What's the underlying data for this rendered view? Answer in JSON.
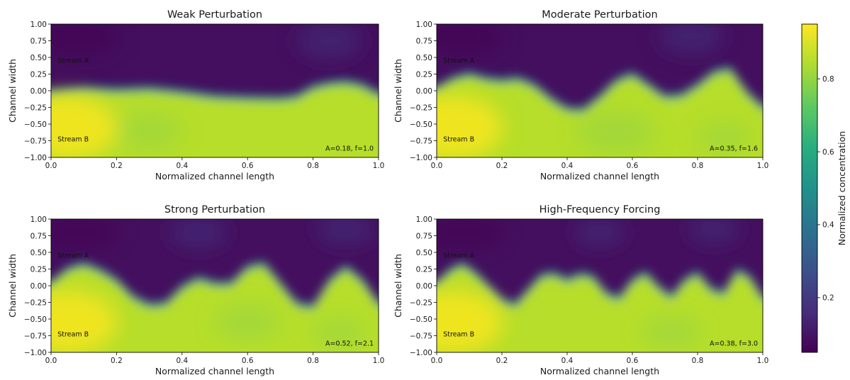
{
  "chart_data": [
    {
      "type": "heatmap",
      "title": "Weak Perturbation",
      "xlabel": "Normalized channel length",
      "ylabel": "Channel width",
      "xlim": [
        0.0,
        1.0
      ],
      "ylim": [
        -1.0,
        1.0
      ],
      "xticks": [
        "0.0",
        "0.2",
        "0.4",
        "0.6",
        "0.8",
        "1.0"
      ],
      "yticks": [
        "1.00",
        "0.75",
        "0.50",
        "0.25",
        "0.00",
        "−0.25",
        "−0.50",
        "−0.75",
        "−1.00"
      ],
      "stream_labels": [
        "Stream A",
        "Stream B"
      ],
      "annotation": "A=0.18, f=1.0",
      "interface": {
        "x": [
          0.0,
          0.1,
          0.2,
          0.3,
          0.4,
          0.5,
          0.6,
          0.7,
          0.75,
          0.8,
          0.85,
          0.9,
          0.95,
          1.0
        ],
        "y": [
          -0.05,
          0.0,
          -0.02,
          0.0,
          -0.05,
          -0.12,
          -0.14,
          -0.15,
          -0.12,
          0.02,
          0.08,
          0.1,
          0.05,
          -0.08
        ]
      }
    },
    {
      "type": "heatmap",
      "title": "Moderate Perturbation",
      "xlabel": "Normalized channel length",
      "ylabel": "Channel width",
      "xlim": [
        0.0,
        1.0
      ],
      "ylim": [
        -1.0,
        1.0
      ],
      "xticks": [
        "0.0",
        "0.2",
        "0.4",
        "0.6",
        "0.8",
        "1.0"
      ],
      "yticks": [
        "1.00",
        "0.75",
        "0.50",
        "0.25",
        "0.00",
        "−0.25",
        "−0.50",
        "−0.75",
        "−1.00"
      ],
      "stream_labels": [
        "Stream A",
        "Stream B"
      ],
      "annotation": "A=0.35, f=1.6",
      "interface": {
        "x": [
          0.0,
          0.05,
          0.1,
          0.15,
          0.2,
          0.25,
          0.3,
          0.35,
          0.4,
          0.45,
          0.5,
          0.55,
          0.6,
          0.65,
          0.7,
          0.75,
          0.8,
          0.85,
          0.9,
          0.95,
          1.0
        ],
        "y": [
          0.0,
          0.15,
          0.22,
          0.15,
          0.12,
          0.15,
          0.05,
          -0.15,
          -0.3,
          -0.32,
          -0.12,
          0.12,
          0.22,
          0.05,
          -0.12,
          -0.1,
          0.05,
          0.25,
          0.3,
          -0.05,
          -0.28
        ]
      }
    },
    {
      "type": "heatmap",
      "title": "Strong Perturbation",
      "xlabel": "Normalized channel length",
      "ylabel": "Channel width",
      "xlim": [
        0.0,
        1.0
      ],
      "ylim": [
        -1.0,
        1.0
      ],
      "xticks": [
        "0.0",
        "0.2",
        "0.4",
        "0.6",
        "0.8",
        "1.0"
      ],
      "yticks": [
        "1.00",
        "0.75",
        "0.50",
        "0.25",
        "0.00",
        "−0.25",
        "−0.50",
        "−0.75",
        "−1.00"
      ],
      "stream_labels": [
        "Stream A",
        "Stream B"
      ],
      "annotation": "A=0.52, f=2.1",
      "interface": {
        "x": [
          0.0,
          0.05,
          0.1,
          0.15,
          0.2,
          0.25,
          0.3,
          0.35,
          0.4,
          0.45,
          0.5,
          0.55,
          0.6,
          0.65,
          0.7,
          0.75,
          0.8,
          0.85,
          0.9,
          0.95,
          1.0
        ],
        "y": [
          0.0,
          0.22,
          0.3,
          0.2,
          0.05,
          -0.2,
          -0.32,
          -0.3,
          -0.05,
          0.08,
          0.0,
          0.0,
          0.25,
          0.3,
          0.0,
          -0.3,
          -0.35,
          0.05,
          0.25,
          0.05,
          -0.3
        ]
      }
    },
    {
      "type": "heatmap",
      "title": "High-Frequency Forcing",
      "xlabel": "Normalized channel length",
      "ylabel": "Channel width",
      "xlim": [
        0.0,
        1.0
      ],
      "ylim": [
        -1.0,
        1.0
      ],
      "xticks": [
        "0.0",
        "0.2",
        "0.4",
        "0.6",
        "0.8",
        "1.0"
      ],
      "yticks": [
        "1.00",
        "0.75",
        "0.50",
        "0.25",
        "0.00",
        "−0.25",
        "−0.50",
        "−0.75",
        "−1.00"
      ],
      "stream_labels": [
        "Stream A",
        "Stream B"
      ],
      "annotation": "A=0.38, f=3.0",
      "interface": {
        "x": [
          0.0,
          0.04,
          0.08,
          0.12,
          0.16,
          0.2,
          0.24,
          0.28,
          0.32,
          0.36,
          0.4,
          0.44,
          0.48,
          0.52,
          0.56,
          0.6,
          0.64,
          0.68,
          0.72,
          0.76,
          0.8,
          0.84,
          0.88,
          0.92,
          0.96,
          1.0
        ],
        "y": [
          0.0,
          0.2,
          0.3,
          0.15,
          -0.05,
          -0.25,
          -0.32,
          -0.1,
          0.12,
          0.15,
          0.05,
          0.14,
          0.1,
          -0.15,
          -0.22,
          0.05,
          0.16,
          -0.05,
          -0.2,
          0.05,
          0.16,
          -0.08,
          -0.15,
          0.2,
          0.1,
          -0.22
        ]
      }
    }
  ],
  "colorbar": {
    "label": "Normalized concentration",
    "colormap": "viridis",
    "range": [
      0.05,
      0.95
    ],
    "ticks": [
      0.2,
      0.4,
      0.6,
      0.8
    ],
    "tick_labels": [
      "0.2",
      "0.4",
      "0.6",
      "0.8"
    ]
  },
  "colors": {
    "stream_a": "#472d7b",
    "stream_b": "#e8e019",
    "interface_mid": "#21918c"
  }
}
